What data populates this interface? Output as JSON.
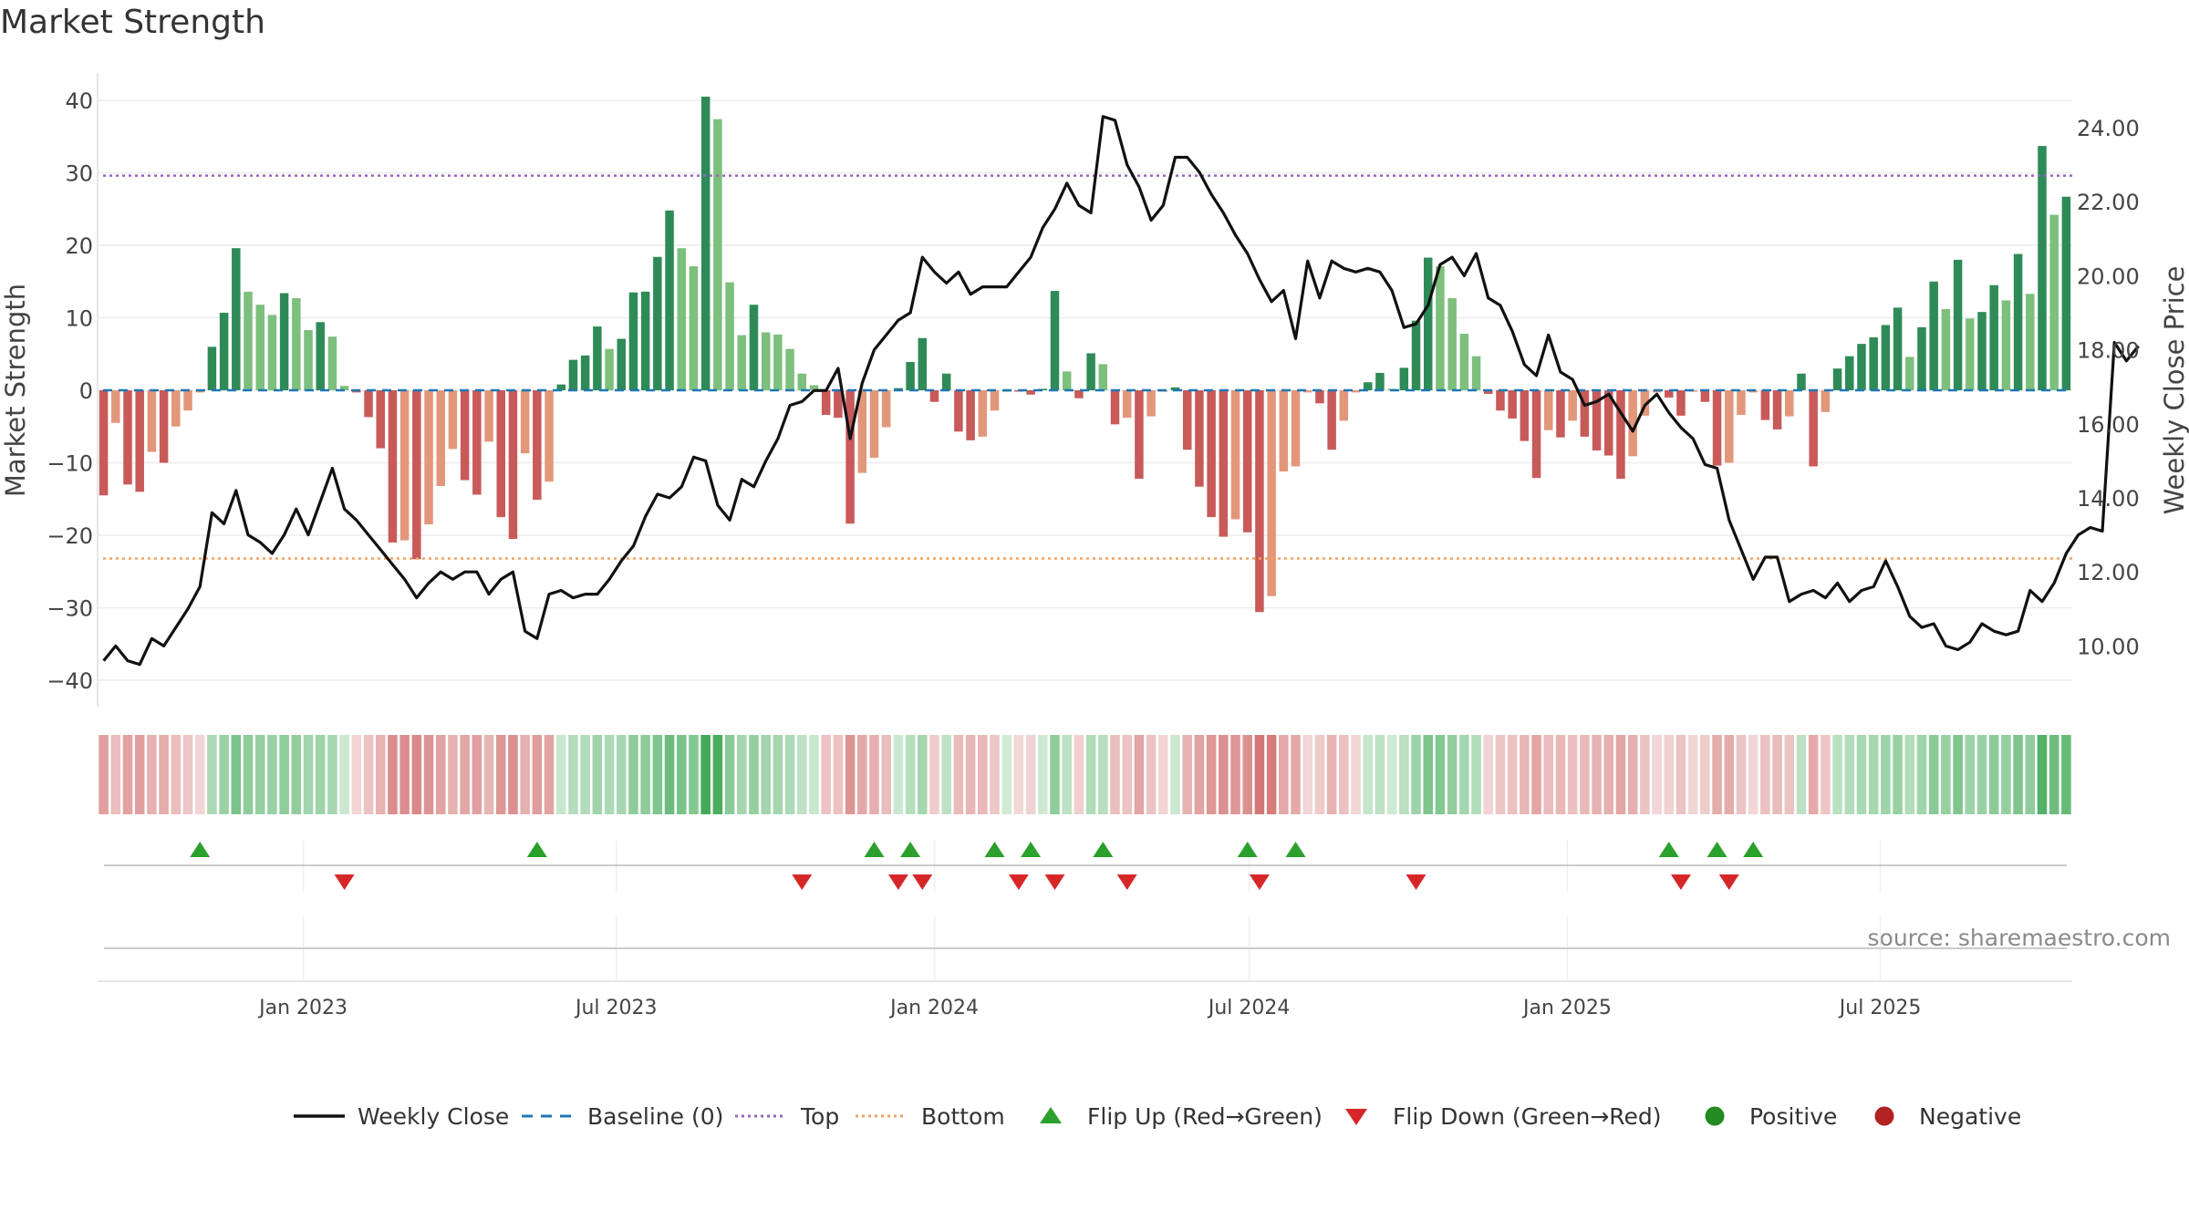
{
  "chart_data": {
    "type": "bar+line",
    "title": "Market Strength",
    "source_note": "source: sharemaestro.com",
    "ylabel_left": "Market Strength",
    "ylabel_right": "Weekly Close Price",
    "ylim_left": [
      -43,
      44
    ],
    "ylim_right": [
      8.8,
      25.7
    ],
    "yticks_left": [
      40,
      30,
      20,
      10,
      0,
      -10,
      -20,
      -30,
      -40
    ],
    "yticks_left_labels": [
      "40",
      "30",
      "20",
      "10",
      "0",
      "−10",
      "−20",
      "−30",
      "−40"
    ],
    "yticks_right": [
      24,
      22,
      20,
      18,
      16,
      14,
      12,
      10
    ],
    "yticks_right_labels": [
      "24.00",
      "22.00",
      "20.00",
      "18.00",
      "16.00",
      "14.00",
      "12.00",
      "10.00"
    ],
    "xtick_labels": [
      "Jan 2023",
      "Jul 2023",
      "Jan 2024",
      "Jul 2024",
      "Jan 2025",
      "Jul 2025"
    ],
    "xtick_dates": [
      "2023-01-01",
      "2023-07-01",
      "2024-01-01",
      "2024-07-01",
      "2025-01-01",
      "2025-07-01"
    ],
    "x_start": "2022-09-04",
    "x_end": "2025-10-20",
    "top_line": 29.6,
    "bottom_line": -23.2,
    "baseline": 0,
    "strength": [
      -14.5,
      -4.5,
      -13,
      -14,
      -8.5,
      -10,
      -5,
      -2.8,
      -0.3,
      6,
      10.7,
      19.6,
      13.6,
      11.8,
      10.4,
      13.4,
      12.7,
      8.3,
      9.4,
      7.4,
      0.6,
      -0.3,
      -3.7,
      -8,
      -21,
      -20.7,
      -23.3,
      -18.5,
      -13.2,
      -8.1,
      -12.4,
      -14.4,
      -7.1,
      -17.5,
      -20.5,
      -8.7,
      -15.1,
      -12.6,
      0.8,
      4.2,
      4.8,
      8.8,
      5.7,
      7.1,
      13.5,
      13.6,
      18.4,
      24.8,
      19.6,
      17.1,
      40.5,
      37.4,
      14.9,
      7.6,
      11.8,
      8,
      7.7,
      5.7,
      2.3,
      0.7,
      -3.4,
      -3.8,
      -18.4,
      -11.4,
      -9.3,
      -5.1,
      0.3,
      3.9,
      7.2,
      -1.6,
      2.3,
      -5.7,
      -6.9,
      -6.4,
      -2.8,
      0,
      -0.1,
      -0.6,
      0.2,
      13.7,
      2.6,
      -1.1,
      5.1,
      3.6,
      -4.7,
      -3.8,
      -12.2,
      -3.6,
      -0.2,
      0.4,
      -8.2,
      -13.3,
      -17.5,
      -20.2,
      -17.8,
      -19.6,
      -30.6,
      -28.4,
      -11.2,
      -10.5,
      -0.3,
      -1.8,
      -8.2,
      -4.2,
      -0.3,
      1.1,
      2.4,
      0.2,
      3.1,
      9.6,
      18.3,
      17.1,
      12.7,
      7.8,
      4.7,
      -0.5,
      -2.8,
      -3.9,
      -7,
      -12.1,
      -5.5,
      -6.5,
      -4.2,
      -6.4,
      -8.3,
      -9,
      -12.2,
      -9.1,
      -3.5,
      -0.3,
      -1,
      -3.5,
      -0.2,
      -1.6,
      -10.4,
      -10,
      -3.4,
      -0.3,
      -4.1,
      -5.4,
      -3.6,
      2.3,
      -10.5,
      -3,
      3,
      4.7,
      6.4,
      7.3,
      9,
      11.4,
      4.6,
      8.7,
      15,
      11.2,
      18,
      9.9,
      10.8,
      14.5,
      12.4,
      18.8,
      13.3,
      33.7,
      24.2,
      26.7
    ],
    "weekly_close": [
      9.6,
      10,
      9.6,
      9.5,
      10.2,
      10,
      10.5,
      11,
      11.6,
      13.6,
      13.3,
      14.2,
      13,
      12.8,
      12.5,
      13,
      13.7,
      13,
      13.9,
      14.8,
      13.7,
      13.4,
      13,
      12.6,
      12.2,
      11.8,
      11.3,
      11.7,
      12,
      11.8,
      12,
      12,
      11.4,
      11.8,
      12,
      10.4,
      10.2,
      11.4,
      11.5,
      11.3,
      11.4,
      11.4,
      11.8,
      12.3,
      12.7,
      13.5,
      14.1,
      14,
      14.3,
      15.1,
      15,
      13.8,
      13.4,
      14.5,
      14.3,
      15,
      15.6,
      16.5,
      16.6,
      16.9,
      16.9,
      17.5,
      15.6,
      17.1,
      18,
      18.4,
      18.8,
      19,
      20.5,
      20.1,
      19.8,
      20.1,
      19.5,
      19.7,
      19.7,
      19.7,
      20.1,
      20.5,
      21.3,
      21.8,
      22.5,
      21.9,
      21.7,
      24.3,
      24.2,
      23,
      22.4,
      21.5,
      21.9,
      23.2,
      23.2,
      22.8,
      22.2,
      21.7,
      21.1,
      20.6,
      19.9,
      19.3,
      19.6,
      18.3,
      20.4,
      19.4,
      20.4,
      20.2,
      20.1,
      20.2,
      20.1,
      19.6,
      18.6,
      18.7,
      19.2,
      20.3,
      20.5,
      20,
      20.6,
      19.4,
      19.2,
      18.5,
      17.6,
      17.3,
      18.4,
      17.4,
      17.2,
      16.5,
      16.6,
      16.8,
      16.3,
      15.8,
      16.5,
      16.8,
      16.3,
      15.9,
      15.6,
      14.9,
      14.8,
      13.4,
      12.6,
      11.8,
      12.4,
      12.4,
      11.2,
      11.4,
      11.5,
      11.3,
      11.7,
      11.2,
      11.5,
      11.6,
      12.3,
      11.6,
      10.8,
      10.5,
      10.6,
      10,
      9.9,
      10.1,
      10.6,
      10.4,
      10.3,
      10.4,
      11.5,
      11.2,
      11.7,
      12.5,
      13,
      13.2,
      13.1,
      18.2,
      17.7,
      18.1
    ],
    "flip_up_weeks": [
      8,
      36,
      64,
      67,
      74,
      77,
      83,
      95,
      99,
      130,
      134,
      137
    ],
    "flip_down_weeks": [
      20,
      58,
      66,
      68,
      76,
      79,
      85,
      96,
      109,
      131,
      135
    ],
    "colors": {
      "strong_positive": "#2e8b57",
      "weak_positive": "#7dbf7d",
      "strong_negative": "#c85a5a",
      "weak_negative": "#e3977a",
      "price_line": "#111111",
      "baseline": "#1f77b4",
      "top": "#9467bd",
      "bottom": "#f4a261",
      "flip_up": "#2ca02c",
      "flip_down": "#d62728",
      "positive": "#228b22",
      "negative": "#b22222"
    },
    "legend_position": "bottom-center",
    "legend": [
      {
        "label": "Weekly Close",
        "marker": "line"
      },
      {
        "label": "Baseline (0)",
        "marker": "dash"
      },
      {
        "label": "Top",
        "marker": "dot"
      },
      {
        "label": "Bottom",
        "marker": "dot"
      },
      {
        "label": "Flip Up (Red→Green)",
        "marker": "triangle-up"
      },
      {
        "label": "Flip Down (Green→Red)",
        "marker": "triangle-down"
      },
      {
        "label": "Positive",
        "marker": "circle"
      },
      {
        "label": "Negative",
        "marker": "circle"
      }
    ]
  }
}
